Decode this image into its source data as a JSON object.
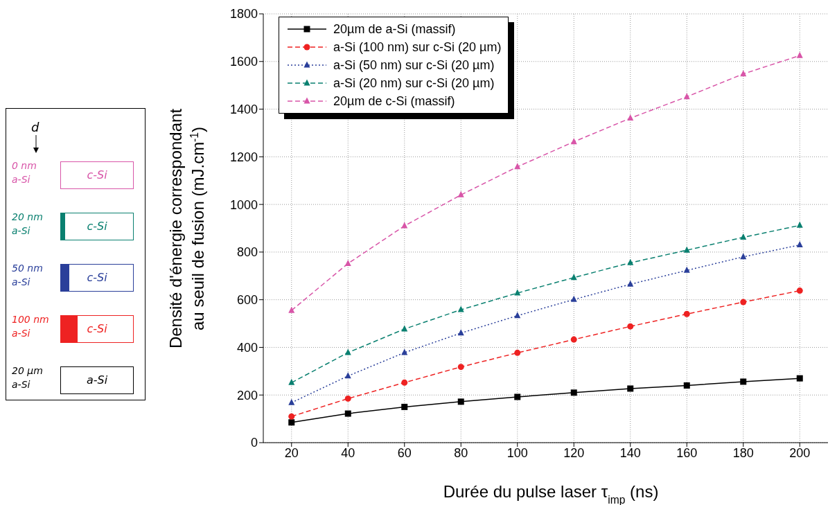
{
  "chart_data": {
    "type": "line",
    "xlabel": "Durée du pulse laser τ$_{imp}$ (ns)",
    "ylabel": "Densité d'énergie correspondant\nau seuil de fusion (mJ.cm$^{-1}$)",
    "x": [
      20,
      40,
      60,
      80,
      100,
      120,
      140,
      160,
      180,
      200
    ],
    "series": [
      {
        "name": "20µm de a-Si (massif)",
        "color": "#000000",
        "marker": "square",
        "line_style": "solid",
        "values": [
          85,
          122,
          150,
          172,
          192,
          210,
          227,
          240,
          256,
          270
        ]
      },
      {
        "name": "a-Si (100 nm) sur c-Si (20 µm)",
        "color": "#ee2222",
        "marker": "circle",
        "line_style": "dashed",
        "values": [
          110,
          185,
          252,
          318,
          377,
          433,
          488,
          540,
          590,
          638
        ]
      },
      {
        "name": "a-Si (50 nm) sur c-Si (20 µm)",
        "color": "#2a3f9a",
        "marker": "triangle",
        "line_style": "dotted",
        "values": [
          168,
          280,
          378,
          460,
          533,
          601,
          665,
          723,
          780,
          830
        ]
      },
      {
        "name": "a-Si (20 nm) sur c-Si (20 µm)",
        "color": "#0a8070",
        "marker": "triangle",
        "line_style": "dashed",
        "values": [
          252,
          378,
          477,
          558,
          628,
          693,
          755,
          808,
          862,
          912
        ]
      },
      {
        "name": "20µm de c-Si (massif)",
        "color": "#d855a8",
        "marker": "triangle",
        "line_style": "dashed",
        "values": [
          555,
          752,
          910,
          1040,
          1158,
          1263,
          1362,
          1452,
          1548,
          1625
        ]
      }
    ],
    "xlim": [
      10,
      210
    ],
    "xticks": [
      20,
      40,
      60,
      80,
      100,
      120,
      140,
      160,
      180,
      200
    ],
    "ylim": [
      0,
      1800
    ],
    "yticks": [
      0,
      200,
      400,
      600,
      800,
      1000,
      1200,
      1400,
      1600,
      1800
    ],
    "grid": true,
    "legend": "top left",
    "annotations": [
      "d",
      "0 nm\na-Si",
      "c-Si",
      "20 nm\na-Si",
      "c-Si",
      "50 nm\na-Si",
      "c-Si",
      "100 nm\na-Si",
      "c-Si",
      "20 µm\na-Si",
      "a-Si"
    ]
  }
}
